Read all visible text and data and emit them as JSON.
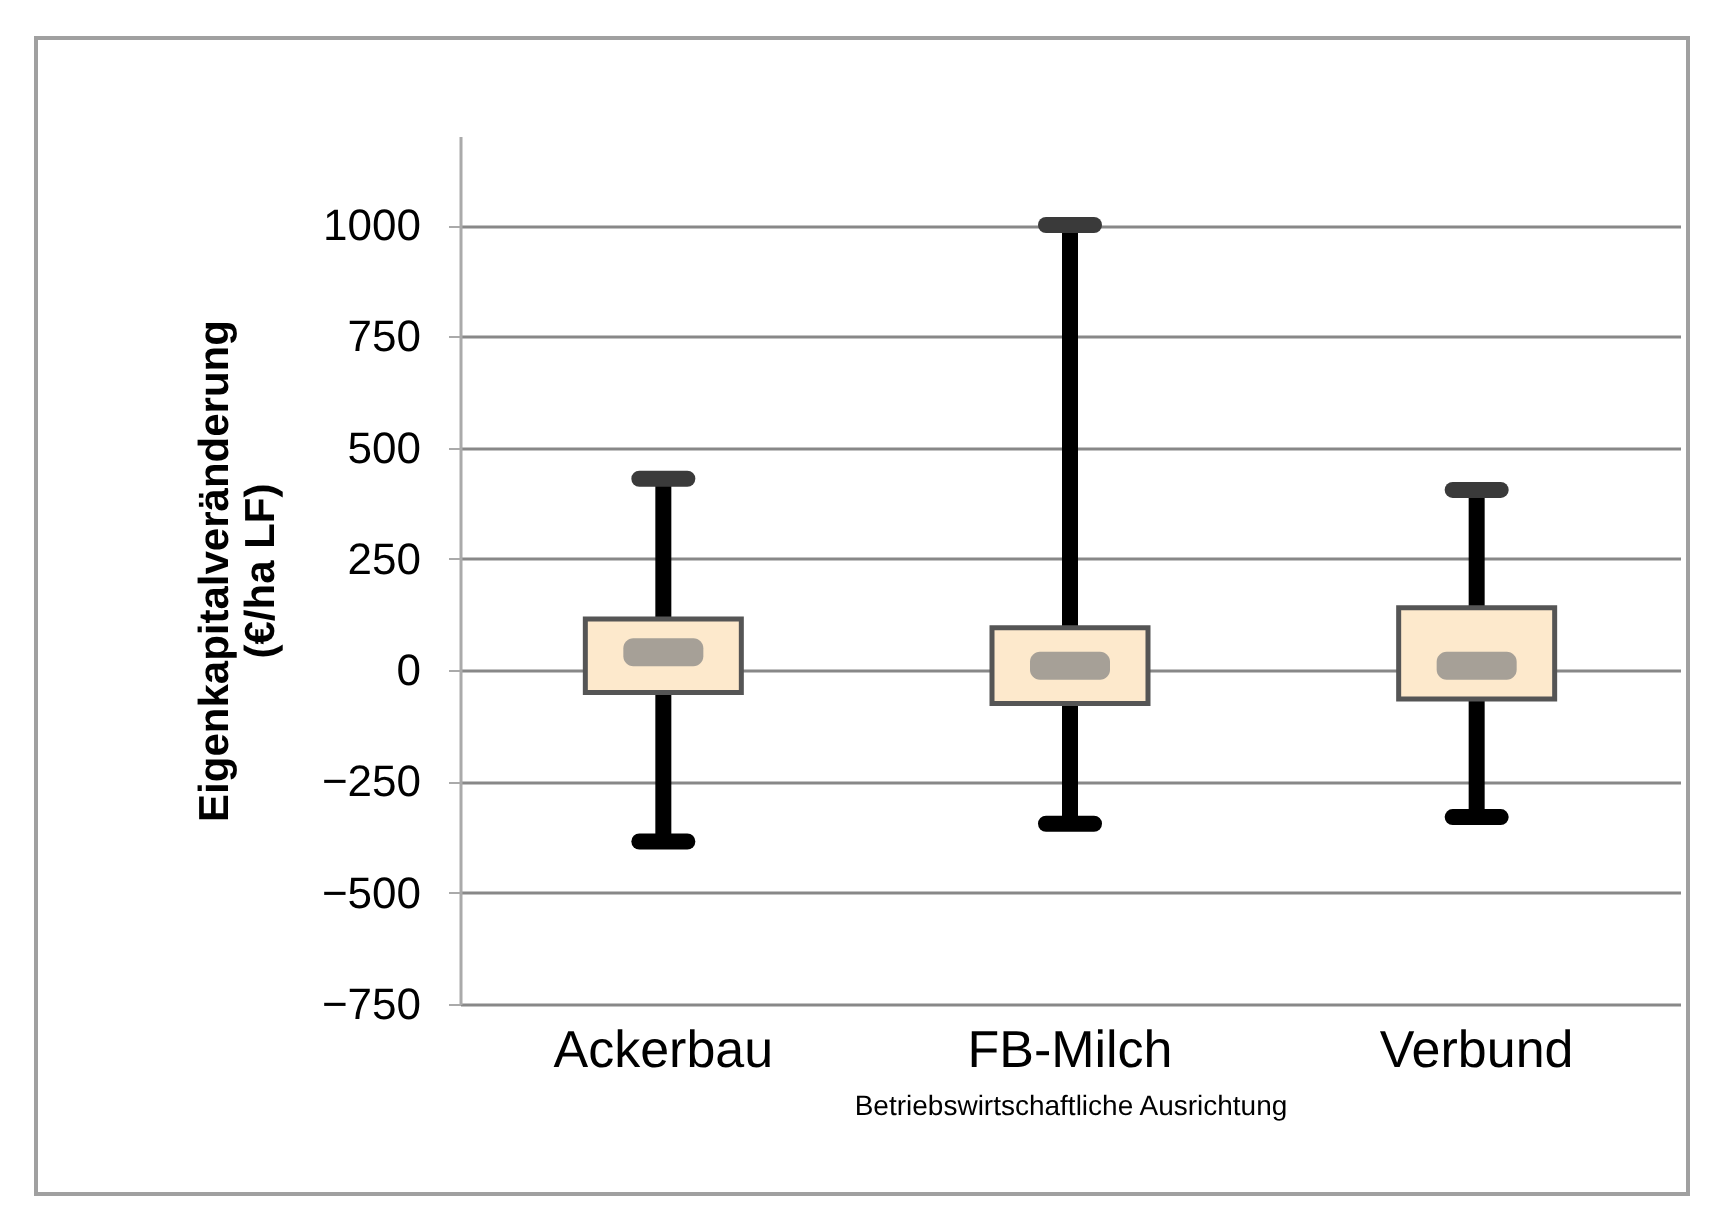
{
  "chart_data": {
    "type": "box",
    "xlabel": "Betriebswirtschaftliche Ausrichtung",
    "ylabel": "Eigenkapitalveränderung (€/ha LF)",
    "categories": [
      "Ackerbau",
      "FB-Milch",
      "Verbund"
    ],
    "series": [
      {
        "color": "#fde9cc",
        "boxes": [
          {
            "low": -385,
            "q1": -50,
            "median": 40,
            "q3": 115,
            "high": 430
          },
          {
            "low": -345,
            "q1": -75,
            "median": 10,
            "q3": 95,
            "high": 1000
          },
          {
            "low": -330,
            "q1": -65,
            "median": 10,
            "q3": 140,
            "high": 405
          }
        ]
      }
    ],
    "ylim": [
      -750,
      1200
    ],
    "yticks": [
      -750,
      -500,
      -250,
      0,
      250,
      500,
      750,
      1000
    ],
    "grid": "y"
  }
}
